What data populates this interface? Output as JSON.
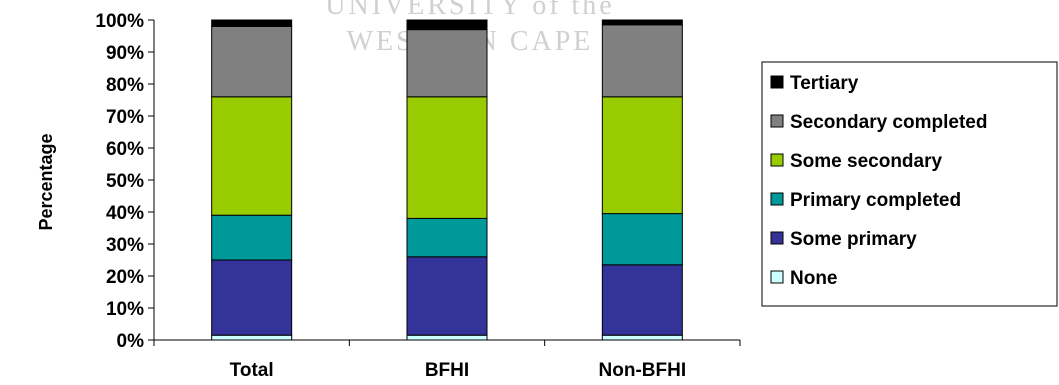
{
  "chart_data": {
    "type": "bar",
    "stacked": true,
    "percent_stacked": true,
    "categories": [
      "Total",
      "BFHI",
      "Non-BFHI"
    ],
    "ylabel": "Percentage",
    "xlabel": "",
    "ylim": [
      0,
      100
    ],
    "yticks": [
      "0%",
      "10%",
      "20%",
      "30%",
      "40%",
      "50%",
      "60%",
      "70%",
      "80%",
      "90%",
      "100%"
    ],
    "grid": false,
    "legend_position": "right",
    "series": [
      {
        "name": "None",
        "color": "#ccffff",
        "values": [
          1.5,
          1.5,
          1.5
        ]
      },
      {
        "name": "Some primary",
        "color": "#333399",
        "values": [
          23.5,
          24.5,
          22.0
        ]
      },
      {
        "name": "Primary completed",
        "color": "#009999",
        "values": [
          14.0,
          12.0,
          16.0
        ]
      },
      {
        "name": "Some secondary",
        "color": "#99cc00",
        "values": [
          37.0,
          38.0,
          36.5
        ]
      },
      {
        "name": "Secondary completed",
        "color": "#808080",
        "values": [
          22.0,
          21.0,
          22.5
        ]
      },
      {
        "name": "Tertiary",
        "color": "#000000",
        "values": [
          2.0,
          3.0,
          1.5
        ]
      }
    ]
  },
  "watermark": {
    "line1": "UNIVERSITY of the",
    "line2": "WESTERN CAPE"
  }
}
